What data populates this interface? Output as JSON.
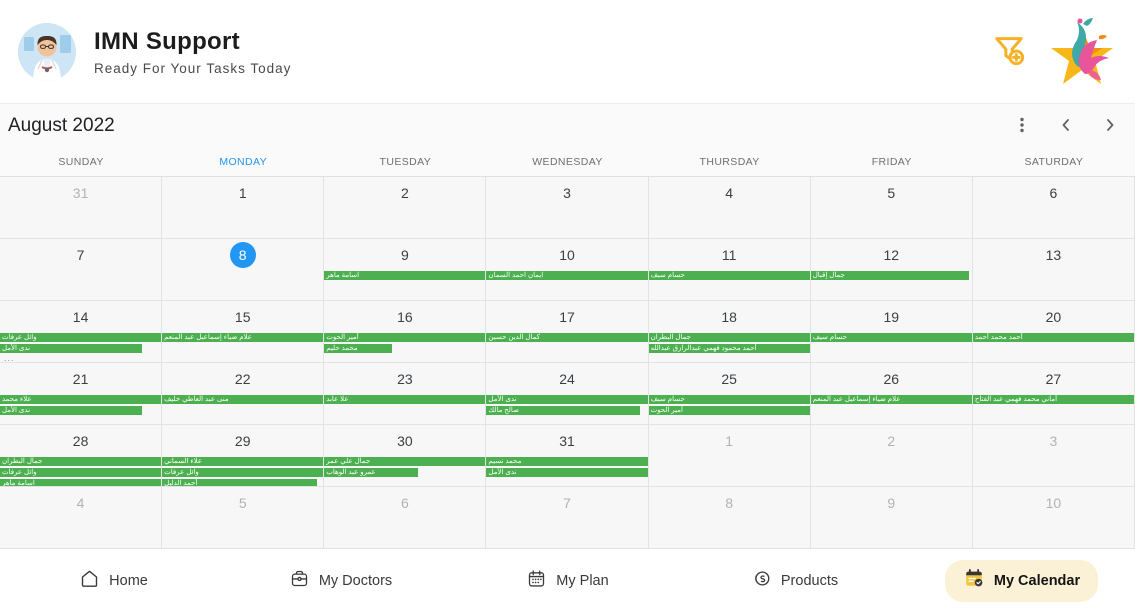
{
  "header": {
    "title": "IMN Support",
    "subtitle": "Ready For Your Tasks Today",
    "icons": [
      "filter-add-icon",
      "star-logo"
    ]
  },
  "calendar": {
    "month_label": "August 2022",
    "weekdays": [
      "SUNDAY",
      "MONDAY",
      "TUESDAY",
      "WEDNESDAY",
      "THURSDAY",
      "FRIDAY",
      "SATURDAY"
    ],
    "active_weekday": "MONDAY",
    "today": "8",
    "colors": {
      "event": "#4CAF50",
      "today": "#2196F3",
      "active_weekday": "#2196F3"
    },
    "weeks": [
      [
        {
          "d": "31",
          "out": true
        },
        {
          "d": "1"
        },
        {
          "d": "2"
        },
        {
          "d": "3"
        },
        {
          "d": "4"
        },
        {
          "d": "5"
        },
        {
          "d": "6"
        }
      ],
      [
        {
          "d": "7"
        },
        {
          "d": "8",
          "today": true
        },
        {
          "d": "9",
          "ev": [
            {
              "t": "اسامة ماهر",
              "w": 100
            }
          ]
        },
        {
          "d": "10",
          "ev": [
            {
              "t": "ايمان احمد السمان",
              "w": 100
            }
          ]
        },
        {
          "d": "11",
          "ev": [
            {
              "t": "حسام سيف",
              "w": 100
            }
          ]
        },
        {
          "d": "12",
          "ev": [
            {
              "t": "جمال إقبال",
              "w": 98
            }
          ]
        },
        {
          "d": "13"
        }
      ],
      [
        {
          "d": "14",
          "ev": [
            {
              "t": "وائل عرفات",
              "w": 100
            },
            {
              "t": "ندى الأمل",
              "w": 88
            }
          ],
          "more": "..."
        },
        {
          "d": "15",
          "ev": [
            {
              "t": "علام ضياء إسماعيل عبد المنعم",
              "w": 100
            }
          ]
        },
        {
          "d": "16",
          "ev": [
            {
              "t": "أمير الحوت",
              "w": 100
            },
            {
              "t": "محمد حليم",
              "w": 42
            }
          ]
        },
        {
          "d": "17",
          "ev": [
            {
              "t": "كمال الدين حسين",
              "w": 100
            }
          ]
        },
        {
          "d": "18",
          "ev": [
            {
              "t": "جمال البطران",
              "w": 100
            },
            {
              "t": "أحمد محمود فهمي عبدالرازق عبدالله",
              "w": 100
            }
          ]
        },
        {
          "d": "19",
          "ev": [
            {
              "t": "حسام سيف",
              "w": 100
            }
          ]
        },
        {
          "d": "20",
          "ev": [
            {
              "t": "أحمد محمد أحمد",
              "w": 100
            }
          ]
        }
      ],
      [
        {
          "d": "21",
          "ev": [
            {
              "t": "علاء محمد",
              "w": 100
            },
            {
              "t": "ندى الأمل",
              "w": 88
            }
          ]
        },
        {
          "d": "22",
          "ev": [
            {
              "t": "منى عبد العاطي خليف",
              "w": 100
            }
          ]
        },
        {
          "d": "23",
          "ev": [
            {
              "t": "علا عابد",
              "w": 100
            }
          ]
        },
        {
          "d": "24",
          "ev": [
            {
              "t": "ندى الأمل",
              "w": 100
            },
            {
              "t": "صالح مالك",
              "w": 95
            }
          ]
        },
        {
          "d": "25",
          "ev": [
            {
              "t": "حسام سيف",
              "w": 100
            },
            {
              "t": "أمير الحوت",
              "w": 100
            }
          ]
        },
        {
          "d": "26",
          "ev": [
            {
              "t": "علام ضياء إسماعيل عبد المنعم",
              "w": 100
            }
          ]
        },
        {
          "d": "27",
          "ev": [
            {
              "t": "أماني محمد فهمي عبد الفتاح",
              "w": 100
            }
          ]
        }
      ],
      [
        {
          "d": "28",
          "ev": [
            {
              "t": "جمال البطران",
              "w": 100
            },
            {
              "t": "وائل عرفات",
              "w": 100
            },
            {
              "t": "اسامة ماهر",
              "w": 100
            }
          ]
        },
        {
          "d": "29",
          "ev": [
            {
              "t": "علاء السماني",
              "w": 100
            },
            {
              "t": "وائل عرفات",
              "w": 100
            },
            {
              "t": "أحمد الدليل",
              "w": 96
            }
          ]
        },
        {
          "d": "30",
          "ev": [
            {
              "t": "جمال علي عمر",
              "w": 100
            },
            {
              "t": "عمرو عبد الوهاب",
              "w": 58
            }
          ]
        },
        {
          "d": "31",
          "ev": [
            {
              "t": "محمد نسيم",
              "w": 100
            },
            {
              "t": "ندى الأمل",
              "w": 100
            }
          ]
        },
        {
          "d": "1",
          "out": true
        },
        {
          "d": "2",
          "out": true
        },
        {
          "d": "3",
          "out": true
        }
      ],
      [
        {
          "d": "4",
          "out": true
        },
        {
          "d": "5",
          "out": true
        },
        {
          "d": "6",
          "out": true
        },
        {
          "d": "7",
          "out": true
        },
        {
          "d": "8",
          "out": true
        },
        {
          "d": "9",
          "out": true
        },
        {
          "d": "10",
          "out": true
        }
      ]
    ]
  },
  "bottom_nav": {
    "items": [
      {
        "label": "Home",
        "icon": "home-icon",
        "active": false
      },
      {
        "label": "My Doctors",
        "icon": "doctor-bag-icon",
        "active": false
      },
      {
        "label": "My Plan",
        "icon": "calendar-outline-icon",
        "active": false
      },
      {
        "label": "Products",
        "icon": "products-icon",
        "active": false
      },
      {
        "label": "My Calendar",
        "icon": "calendar-check-icon",
        "active": true
      }
    ],
    "active_bg": "#faf1d6",
    "active_icon_color": "#F4C542"
  }
}
